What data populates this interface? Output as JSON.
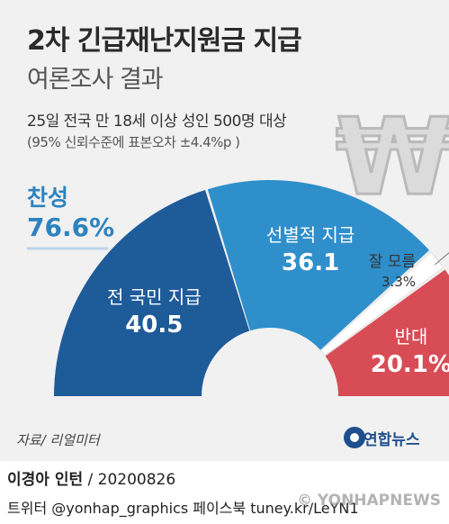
{
  "header": {
    "title": "2차 긴급재난지원금 지급",
    "subtitle": "여론조사 결과",
    "survey": "25일 전국 만 18세 이상 성인 500명 대상",
    "margin": "(95% 신뢰수준에 표본오차 ±4.4%p )"
  },
  "approve": {
    "label": "찬성",
    "value": "76.6%"
  },
  "chart_data": {
    "type": "donut-half",
    "unit": "%",
    "segments": [
      {
        "name": "전 국민 지급",
        "value": 40.5,
        "label": "40.5",
        "color": "#1e5b99"
      },
      {
        "name": "선별적 지급",
        "value": 36.1,
        "label": "36.1",
        "color": "#2f8fcb"
      },
      {
        "name": "잘 모름",
        "value": 3.3,
        "label": "3.3%",
        "color": "#ffffff"
      },
      {
        "name": "반대",
        "value": 20.1,
        "label": "20.1%",
        "color": "#d84c55"
      }
    ]
  },
  "footer": {
    "source": "자료/ 리얼미터",
    "logo": "연합뉴스",
    "credit_name": "이경아 인턴",
    "credit_date": " / 20200826",
    "sns": "트위터 @yonhap_graphics  페이스북 tuney.kr/LeYN1",
    "watermark": "© YONHAPNEWS"
  },
  "icon": "won-sign-icon"
}
